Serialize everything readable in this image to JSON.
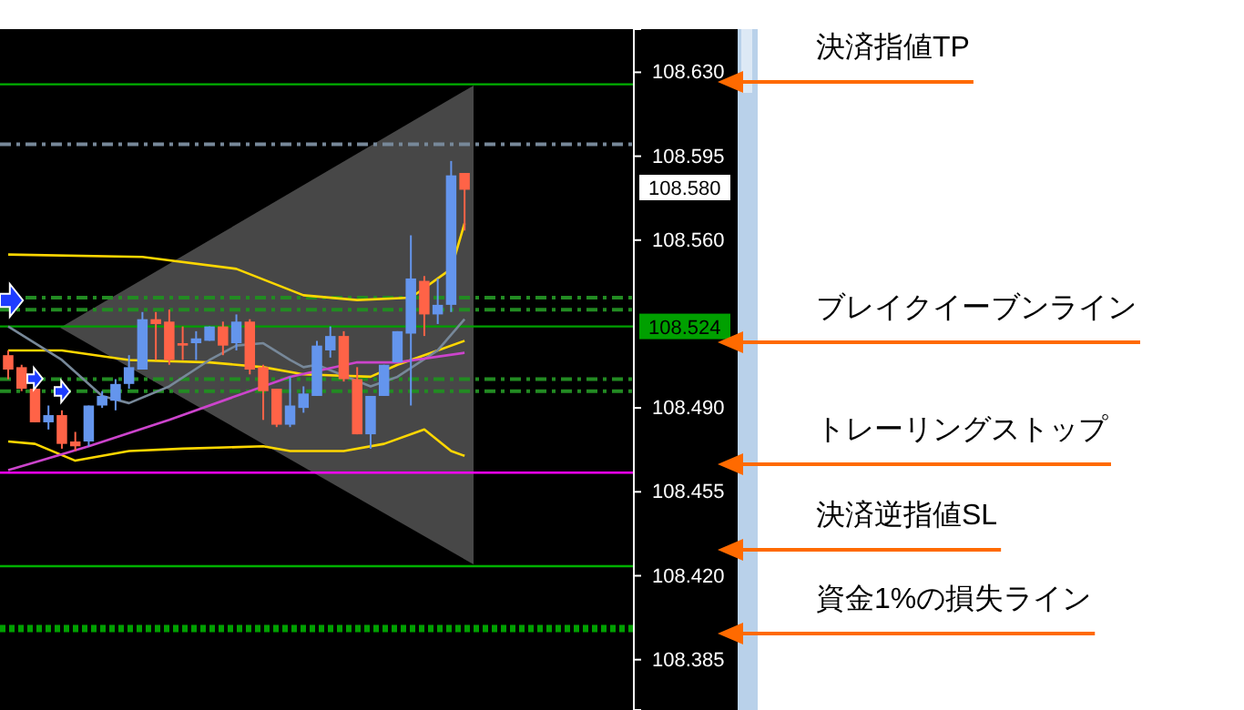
{
  "chart_data": {
    "type": "candlestick",
    "categories": [
      null,
      null,
      null,
      null,
      null,
      null,
      null,
      null,
      null,
      null,
      null,
      null,
      null,
      null,
      null,
      null,
      null,
      null,
      null,
      null,
      null,
      null,
      null,
      null,
      null,
      null,
      null,
      null,
      null,
      null,
      null,
      null,
      null,
      null,
      null,
      null,
      null,
      null,
      null,
      null,
      null,
      null,
      null,
      null,
      null,
      null,
      null
    ],
    "ohlc": [
      [
        108.512,
        108.514,
        108.502,
        108.506
      ],
      [
        108.507,
        108.508,
        108.497,
        108.498
      ],
      [
        108.498,
        108.499,
        108.484,
        108.484
      ],
      [
        108.484,
        108.491,
        108.481,
        108.487
      ],
      [
        108.487,
        108.489,
        108.473,
        108.475
      ],
      [
        108.476,
        108.48,
        108.472,
        108.474
      ],
      [
        108.476,
        108.491,
        108.474,
        108.491
      ],
      [
        108.491,
        108.497,
        108.49,
        108.495
      ],
      [
        108.493,
        108.502,
        108.489,
        108.5
      ],
      [
        108.5,
        108.512,
        108.498,
        108.507
      ],
      [
        108.506,
        108.53,
        108.506,
        108.527
      ],
      [
        108.527,
        108.53,
        108.51,
        108.525
      ],
      [
        108.526,
        108.531,
        108.508,
        108.51
      ],
      [
        108.517,
        108.524,
        108.51,
        108.516
      ],
      [
        108.517,
        108.522,
        108.51,
        108.519
      ],
      [
        108.518,
        108.524,
        108.518,
        108.524
      ],
      [
        108.524,
        108.526,
        108.512,
        108.516
      ],
      [
        108.517,
        108.529,
        108.514,
        108.526
      ],
      [
        108.526,
        108.527,
        108.504,
        108.506
      ],
      [
        108.507,
        108.508,
        108.485,
        108.497
      ],
      [
        108.498,
        108.498,
        108.482,
        108.483
      ],
      [
        108.483,
        108.503,
        108.482,
        108.491
      ],
      [
        108.49,
        108.499,
        108.488,
        108.496
      ],
      [
        108.495,
        108.518,
        108.495,
        108.516
      ],
      [
        108.514,
        108.524,
        108.511,
        108.52
      ],
      [
        108.52,
        108.522,
        108.501,
        108.502
      ],
      [
        108.502,
        108.507,
        108.479,
        108.479
      ],
      [
        108.479,
        108.495,
        108.473,
        108.495
      ],
      [
        108.495,
        108.508,
        108.495,
        108.508
      ],
      [
        108.509,
        108.522,
        108.509,
        108.522
      ],
      [
        108.521,
        108.562,
        108.491,
        108.544
      ],
      [
        108.543,
        108.545,
        108.52,
        108.529
      ],
      [
        108.529,
        108.544,
        108.525,
        108.533
      ],
      [
        108.533,
        108.593,
        108.53,
        108.587
      ],
      [
        108.588,
        108.588,
        108.564,
        108.581
      ],
      null,
      null,
      null,
      null,
      null,
      null,
      null,
      null,
      null,
      null,
      null,
      null
    ],
    "colors": [
      "#ff6347",
      "#ff6347",
      "#ff6347",
      "#6495ed",
      "#ff6347",
      "#ff6347",
      "#6495ed",
      "#6495ed",
      "#6495ed",
      "#6495ed",
      "#6495ed",
      "#ff6347",
      "#ff6347",
      "#ff6347",
      "#6495ed",
      "#6495ed",
      "#ff6347",
      "#6495ed",
      "#ff6347",
      "#ff6347",
      "#ff6347",
      "#6495ed",
      "#6495ed",
      "#6495ed",
      "#6495ed",
      "#ff6347",
      "#ff6347",
      "#6495ed",
      "#6495ed",
      "#6495ed",
      "#6495ed",
      "#ff6347",
      "#6495ed",
      "#6495ed",
      "#ff6347",
      null,
      null,
      null,
      null,
      null,
      null,
      null,
      null,
      null,
      null,
      null,
      null
    ],
    "series": [
      {
        "type": "line",
        "color": "#ffd700",
        "values": [
          108.554,
          null,
          null,
          null,
          null,
          null,
          null,
          null,
          null,
          null,
          108.553,
          null,
          null,
          null,
          null,
          null,
          null,
          108.548,
          null,
          null,
          null,
          null,
          108.537,
          null,
          null,
          null,
          108.535,
          null,
          null,
          null,
          108.536,
          null,
          null,
          108.548,
          108.567,
          null,
          null,
          null,
          null,
          null,
          null,
          null,
          null,
          null,
          null,
          null,
          null
        ]
      },
      {
        "type": "line",
        "color": "#ffd700",
        "values": [
          108.514,
          null,
          null,
          null,
          108.514,
          null,
          null,
          null,
          null,
          108.51,
          null,
          null,
          null,
          null,
          null,
          108.509,
          null,
          null,
          null,
          108.507,
          null,
          null,
          108.504,
          null,
          null,
          null,
          null,
          108.503,
          null,
          108.508,
          null,
          null,
          108.514,
          null,
          108.518,
          null,
          null,
          null,
          null,
          null,
          null,
          null,
          null,
          null,
          null,
          null,
          null
        ]
      },
      {
        "type": "line",
        "color": "#ffd700",
        "values": [
          108.476,
          null,
          108.475,
          null,
          null,
          108.468,
          null,
          null,
          null,
          108.472,
          null,
          null,
          null,
          108.473,
          null,
          null,
          null,
          null,
          null,
          108.474,
          null,
          108.472,
          null,
          null,
          null,
          108.472,
          null,
          null,
          108.475,
          null,
          null,
          108.481,
          null,
          108.472,
          108.47,
          null,
          null,
          null,
          null,
          null,
          null,
          null,
          null,
          null,
          null,
          null,
          null
        ]
      },
      {
        "type": "line",
        "color": "#778899",
        "values": [
          108.524,
          null,
          null,
          null,
          108.51,
          null,
          null,
          108.495,
          null,
          108.492,
          null,
          null,
          108.499,
          null,
          null,
          108.51,
          null,
          108.516,
          null,
          108.517,
          null,
          108.51,
          108.507,
          108.508,
          null,
          null,
          null,
          108.499,
          null,
          108.503,
          null,
          null,
          108.514,
          null,
          108.527,
          null,
          null,
          null,
          null,
          null,
          null,
          null,
          null,
          null,
          null,
          null,
          null
        ]
      },
      {
        "type": "line",
        "color": "#cc44cc",
        "values": [
          108.464,
          null,
          null,
          null,
          null,
          null,
          108.474,
          null,
          null,
          null,
          null,
          null,
          108.485,
          null,
          null,
          null,
          null,
          null,
          108.497,
          null,
          null,
          108.503,
          null,
          null,
          null,
          null,
          108.509,
          null,
          null,
          108.509,
          null,
          null,
          null,
          null,
          108.513,
          null,
          null,
          null,
          null,
          null,
          null,
          null,
          null,
          null,
          null,
          null,
          null
        ]
      }
    ],
    "ylim": [
      108.364,
      108.648
    ],
    "yticks": [
      {
        "value": 108.63,
        "label": "108.630"
      },
      {
        "value": 108.595,
        "label": "108.595"
      },
      {
        "value": 108.56,
        "label": "108.560"
      },
      {
        "value": 108.49,
        "label": "108.490"
      },
      {
        "value": 108.455,
        "label": "108.455"
      },
      {
        "value": 108.42,
        "label": "108.420"
      },
      {
        "value": 108.385,
        "label": "108.385"
      }
    ],
    "ref_lines": [
      {
        "axis": "y",
        "value": 108.625,
        "color": "#00b000"
      },
      {
        "axis": "y",
        "value": 108.6,
        "color": "#778899",
        "line_style": "dashed"
      },
      {
        "axis": "y",
        "value": 108.536,
        "color": "#228b22",
        "line_style": "dashed"
      },
      {
        "axis": "y",
        "value": 108.531,
        "color": "#228b22",
        "line_style": "dashed"
      },
      {
        "axis": "y",
        "value": 108.524,
        "label": "108.524",
        "color": "#00a000"
      },
      {
        "axis": "y",
        "value": 108.502,
        "color": "#228b22",
        "line_style": "dashed"
      },
      {
        "axis": "y",
        "value": 108.497,
        "color": "#228b22",
        "line_style": "dashed"
      },
      {
        "axis": "y",
        "value": 108.463,
        "color": "#ff00ff"
      },
      {
        "axis": "y",
        "value": 108.424,
        "color": "#00b000"
      },
      {
        "axis": "y",
        "value": 108.398,
        "color": "#00a000",
        "line_style": "dotted"
      }
    ],
    "annotations": [
      "108.580",
      "決済指値TP",
      "ブレイクイーブンライン",
      "トレーリングストップ",
      "決済逆指値SL",
      "資金1%の損失ライン"
    ]
  }
}
